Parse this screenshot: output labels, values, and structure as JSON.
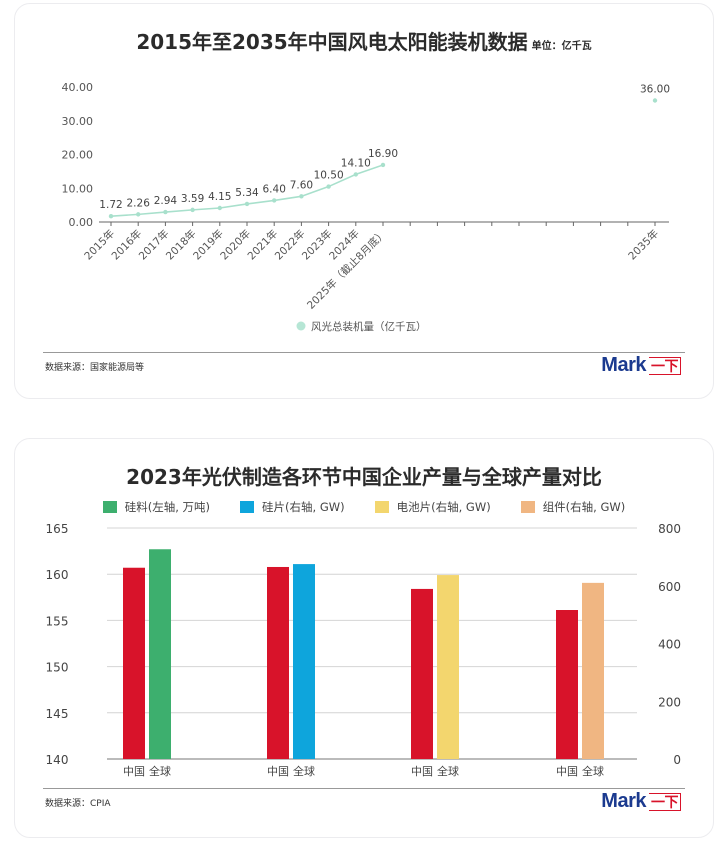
{
  "card1": {
    "title": "2015年至2035年中国风电太阳能装机数据",
    "unit": "单位：亿千瓦",
    "source": "数据来源：国家能源局等",
    "logo": {
      "text": "Mark",
      "suffix": "一下"
    },
    "legend_label": "风光总装机量（亿千瓦）"
  },
  "card2": {
    "title": "2023年光伏制造各环节中国企业产量与全球产量对比",
    "source": "数据来源：CPIA",
    "logo": {
      "text": "Mark",
      "suffix": "一下"
    },
    "legend": [
      {
        "label": "硅料(左轴, 万吨)",
        "color": "#3daf6e"
      },
      {
        "label": "硅片(右轴, GW)",
        "color": "#0ea5dc"
      },
      {
        "label": "电池片(右轴, GW)",
        "color": "#f3d66e"
      },
      {
        "label": "组件(右轴, GW)",
        "color": "#f0b682"
      }
    ]
  },
  "chart_data": [
    {
      "type": "line",
      "title": "2015年至2035年中国风电太阳能装机数据",
      "subtitle": "单位：亿千瓦",
      "xlabel": "",
      "ylabel": "",
      "categories": [
        "2015年",
        "2016年",
        "2017年",
        "2018年",
        "2019年",
        "2020年",
        "2021年",
        "2022年",
        "2023年",
        "2024年",
        "2025年（截止8月底）",
        "",
        "",
        "",
        "",
        "",
        "",
        "",
        "",
        "",
        "2035年"
      ],
      "series": [
        {
          "name": "风光总装机量（亿千瓦）",
          "color": "#a8e0cc",
          "values": [
            1.72,
            2.26,
            2.94,
            3.59,
            4.15,
            5.34,
            6.4,
            7.6,
            10.5,
            14.1,
            16.9,
            null,
            null,
            null,
            null,
            null,
            null,
            null,
            null,
            null,
            36.0
          ]
        }
      ],
      "data_labels": [
        "1.72",
        "2.26",
        "2.94",
        "3.59",
        "4.15",
        "5.34",
        "6.40",
        "7.60",
        "10.50",
        "14.10",
        "16.90",
        "36.00"
      ],
      "yticks": [
        "0.00",
        "10.00",
        "20.00",
        "30.00",
        "40.00"
      ],
      "ylim": [
        0,
        40
      ],
      "grid": false,
      "legend_position": "bottom"
    },
    {
      "type": "bar",
      "title": "2023年光伏制造各环节中国企业产量与全球产量对比",
      "groups": [
        "硅料",
        "硅片",
        "电池片",
        "组件"
      ],
      "categories": [
        "中国",
        "全球"
      ],
      "series": [
        {
          "name": "硅料(左轴, 万吨)",
          "axis": "left",
          "china": 160.7,
          "global": 162.7,
          "color": "#3daf6e"
        },
        {
          "name": "硅片(右轴, GW)",
          "axis": "right",
          "china": 665,
          "global": 675,
          "color": "#0ea5dc"
        },
        {
          "name": "电池片(右轴, GW)",
          "axis": "right",
          "china": 589,
          "global": 637,
          "color": "#f3d66e"
        },
        {
          "name": "组件(右轴, GW)",
          "axis": "right",
          "china": 516,
          "global": 610,
          "color": "#f0b682"
        }
      ],
      "china_color": "#d8132a",
      "left_axis": {
        "ticks": [
          140,
          145,
          150,
          155,
          160,
          165
        ],
        "ylim": [
          140,
          165
        ],
        "unit": "万吨"
      },
      "right_axis": {
        "ticks": [
          0,
          200,
          400,
          600,
          800
        ],
        "ylim": [
          0,
          800
        ],
        "unit": "GW"
      },
      "grid": true,
      "legend_position": "top"
    }
  ]
}
